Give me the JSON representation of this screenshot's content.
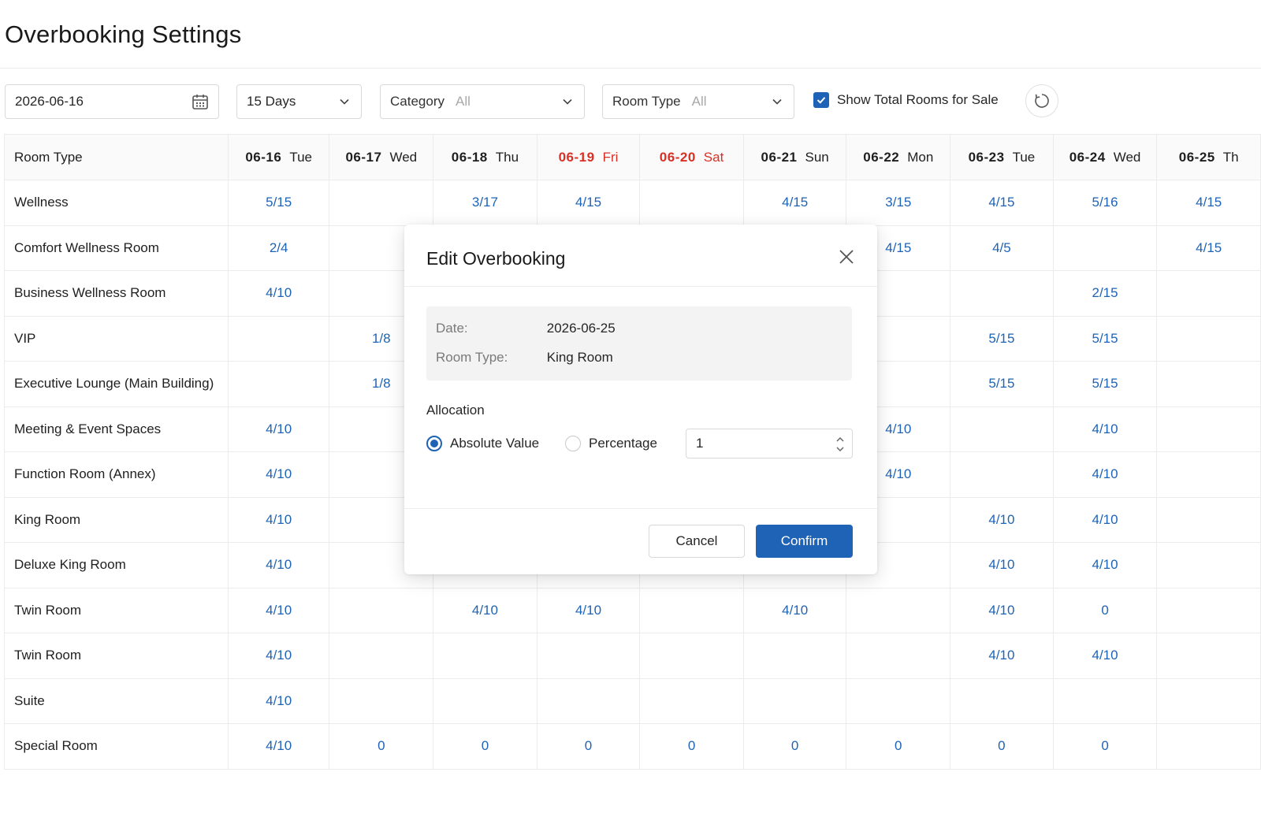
{
  "page": {
    "title": "Overbooking Settings"
  },
  "filters": {
    "date": "2026-06-16",
    "days": "15 Days",
    "category": {
      "label": "Category",
      "value": "All"
    },
    "room_type": {
      "label": "Room Type",
      "value": "All"
    },
    "show_total_label": "Show Total Rooms for Sale",
    "show_total_checked": true
  },
  "grid": {
    "room_type_header": "Room Type",
    "dates": [
      {
        "date": "06-16",
        "weekday": "Tue",
        "weekend": false
      },
      {
        "date": "06-17",
        "weekday": "Wed",
        "weekend": false
      },
      {
        "date": "06-18",
        "weekday": "Thu",
        "weekend": false
      },
      {
        "date": "06-19",
        "weekday": "Fri",
        "weekend": true
      },
      {
        "date": "06-20",
        "weekday": "Sat",
        "weekend": true
      },
      {
        "date": "06-21",
        "weekday": "Sun",
        "weekend": false
      },
      {
        "date": "06-22",
        "weekday": "Mon",
        "weekend": false
      },
      {
        "date": "06-23",
        "weekday": "Tue",
        "weekend": false
      },
      {
        "date": "06-24",
        "weekday": "Wed",
        "weekend": false
      },
      {
        "date": "06-25",
        "weekday": "Th",
        "weekend": false
      }
    ],
    "rows": [
      {
        "name": "Wellness",
        "cells": [
          "5/15",
          "",
          "3/17",
          "4/15",
          "",
          "4/15",
          "3/15",
          "4/15",
          "5/16",
          "4/15"
        ]
      },
      {
        "name": "Comfort Wellness Room",
        "cells": [
          "2/4",
          "",
          "",
          "",
          "",
          "",
          "4/15",
          "4/5",
          "",
          "4/15"
        ]
      },
      {
        "name": "Business Wellness Room",
        "cells": [
          "4/10",
          "",
          "",
          "",
          "",
          "",
          "",
          "",
          "2/15",
          ""
        ]
      },
      {
        "name": "VIP",
        "cells": [
          "",
          "1/8",
          "",
          "",
          "",
          "",
          "",
          "5/15",
          "5/15",
          ""
        ]
      },
      {
        "name": "Executive Lounge (Main Building)",
        "cells": [
          "",
          "1/8",
          "",
          "",
          "",
          "",
          "",
          "5/15",
          "5/15",
          ""
        ]
      },
      {
        "name": "Meeting & Event Spaces",
        "cells": [
          "4/10",
          "",
          "",
          "",
          "",
          "",
          "4/10",
          "",
          "4/10",
          ""
        ]
      },
      {
        "name": "Function Room (Annex)",
        "cells": [
          "4/10",
          "",
          "",
          "",
          "",
          "",
          "4/10",
          "",
          "4/10",
          ""
        ]
      },
      {
        "name": "King Room",
        "cells": [
          "4/10",
          "",
          "",
          "",
          "",
          "",
          "",
          "4/10",
          "4/10",
          ""
        ]
      },
      {
        "name": "Deluxe King Room",
        "cells": [
          "4/10",
          "",
          "",
          "",
          "",
          "",
          "",
          "4/10",
          "4/10",
          ""
        ]
      },
      {
        "name": "Twin Room",
        "cells": [
          "4/10",
          "",
          "4/10",
          "4/10",
          "",
          "4/10",
          "",
          "4/10",
          "0",
          ""
        ]
      },
      {
        "name": "Twin Room",
        "cells": [
          "4/10",
          "",
          "",
          "",
          "",
          "",
          "",
          "4/10",
          "4/10",
          ""
        ]
      },
      {
        "name": "Suite",
        "cells": [
          "4/10",
          "",
          "",
          "",
          "",
          "",
          "",
          "",
          "",
          ""
        ]
      },
      {
        "name": "Special Room",
        "cells": [
          "4/10",
          "0",
          "0",
          "0",
          "0",
          "0",
          "0",
          "0",
          "0",
          ""
        ]
      }
    ]
  },
  "modal": {
    "title": "Edit Overbooking",
    "date_label": "Date:",
    "date_value": "2026-06-25",
    "room_type_label": "Room Type:",
    "room_type_value": "King Room",
    "allocation_label": "Allocation",
    "option_absolute": "Absolute Value",
    "option_percentage": "Percentage",
    "selected_option": "absolute",
    "value": "1",
    "cancel_label": "Cancel",
    "confirm_label": "Confirm"
  },
  "colors": {
    "accent": "#1e63b6",
    "weekend": "#d93026"
  },
  "icons": {
    "date": "calendar-icon",
    "dropdown": "chevron-down-icon",
    "refresh": "refresh-icon",
    "close": "close-icon",
    "stepper": "stepper-icon"
  }
}
